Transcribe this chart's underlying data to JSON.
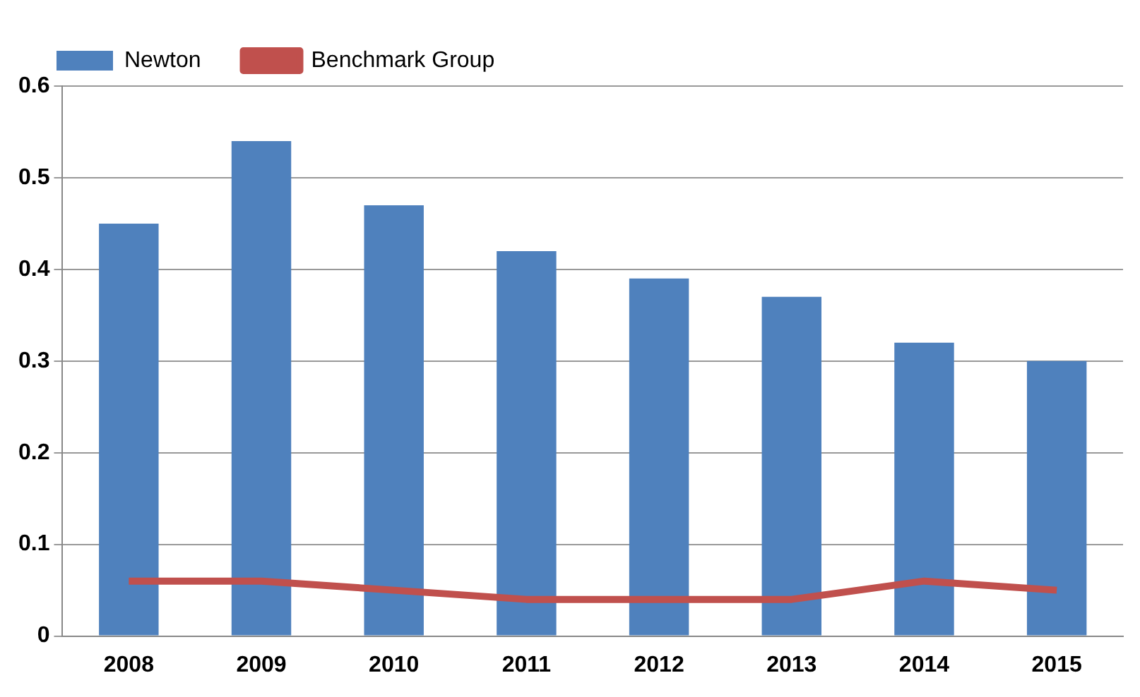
{
  "chart_data": {
    "type": "bar",
    "categories": [
      "2008",
      "2009",
      "2010",
      "2011",
      "2012",
      "2013",
      "2014",
      "2015"
    ],
    "series": [
      {
        "name": "Newton",
        "color": "#4f81bd",
        "values": [
          0.45,
          0.54,
          0.47,
          0.42,
          0.39,
          0.37,
          0.32,
          0.3
        ]
      },
      {
        "name": "Benchmark Group",
        "type": "line",
        "color": "#c0504d",
        "values": [
          0.06,
          0.06,
          0.05,
          0.04,
          0.04,
          0.04,
          0.06,
          0.05
        ]
      }
    ],
    "ylim": [
      0,
      0.6
    ],
    "yticks": [
      0,
      0.1,
      0.2,
      0.3,
      0.4,
      0.5,
      0.6
    ],
    "grid": "y",
    "legend": "top left",
    "marker": "none"
  }
}
